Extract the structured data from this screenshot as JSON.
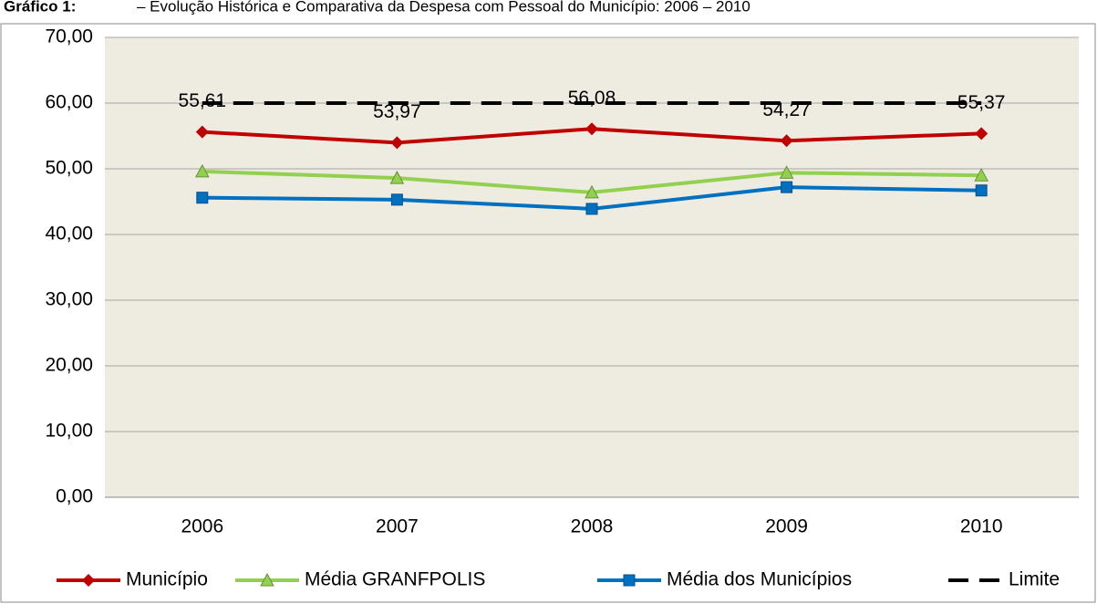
{
  "chart_data": {
    "type": "line",
    "title": "Gráfico 1:",
    "subtitle": "– Evolução Histórica e Comparativa da Despesa com Pessoal do Município: 2006 – 2010",
    "categories": [
      "2006",
      "2007",
      "2008",
      "2009",
      "2010"
    ],
    "series": [
      {
        "name": "Município",
        "color": "#c00000",
        "marker": "diamond",
        "values": [
          55.61,
          53.97,
          56.08,
          54.27,
          55.37
        ],
        "value_labels": [
          "55,61",
          "53,97",
          "56,08",
          "54,27",
          "55,37"
        ]
      },
      {
        "name": "Média GRANFPOLIS",
        "color": "#92d050",
        "marker": "triangle",
        "values": [
          49.6,
          48.6,
          46.4,
          49.4,
          49.0
        ]
      },
      {
        "name": "Média dos Municípios",
        "color": "#0070c0",
        "marker": "square",
        "values": [
          45.6,
          45.3,
          43.9,
          47.2,
          46.7
        ]
      },
      {
        "name": "Limite",
        "color": "#000000",
        "dashed": true,
        "values": [
          60,
          60,
          60,
          60,
          60
        ]
      }
    ],
    "ylim": [
      0,
      70
    ],
    "yticks": [
      {
        "value": 0,
        "label": "0,00"
      },
      {
        "value": 10,
        "label": "10,00"
      },
      {
        "value": 20,
        "label": "20,00"
      },
      {
        "value": 30,
        "label": "30,00"
      },
      {
        "value": 40,
        "label": "40,00"
      },
      {
        "value": 50,
        "label": "50,00"
      },
      {
        "value": 60,
        "label": "60,00"
      },
      {
        "value": 70,
        "label": "70,00"
      }
    ],
    "grid": true
  }
}
